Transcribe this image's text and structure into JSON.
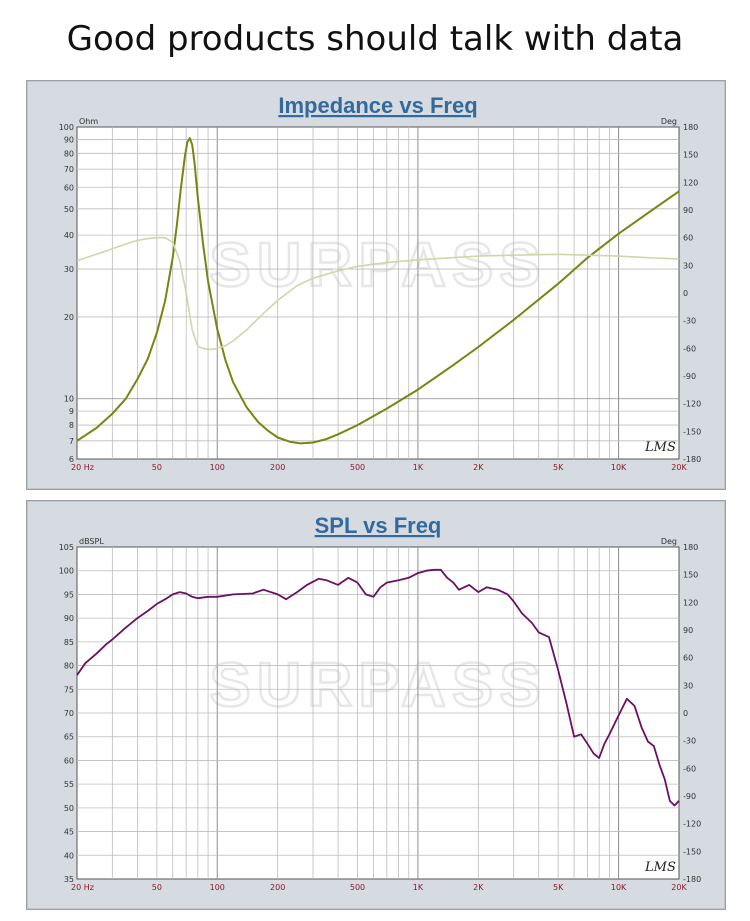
{
  "headline": "Good products should talk with data",
  "watermark": "SURPASS",
  "chart_data": [
    {
      "type": "line",
      "title": "Impedance vs Freq",
      "ylabel_left": "Ohm",
      "ylabel_right": "Deg",
      "xscale": "log",
      "yscale_left": "log",
      "xlim": [
        20,
        20000
      ],
      "ylim_left": [
        6,
        100
      ],
      "ylim_right": [
        -180,
        180
      ],
      "x_ticks": [
        "20 Hz",
        "50",
        "100",
        "200",
        "500",
        "1K",
        "2K",
        "5K",
        "10K",
        "20K"
      ],
      "y_ticks_left": [
        "100",
        "90",
        "80",
        "70",
        "60",
        "50",
        "40",
        "30",
        "20",
        "10",
        "9",
        "8",
        "7",
        "6"
      ],
      "y_ticks_right": [
        "180",
        "150",
        "120",
        "90",
        "60",
        "30",
        "0",
        "-30",
        "-60",
        "-90",
        "-120",
        "-150",
        "-180"
      ],
      "grid": true,
      "software_mark": "LMS",
      "colors": {
        "magnitude": "#7a8410",
        "phase": "#cfd7a8"
      },
      "series": [
        {
          "axis": "left",
          "x": [
            20,
            25,
            30,
            35,
            40,
            45,
            50,
            55,
            60,
            63,
            66,
            69,
            71,
            73,
            75,
            77,
            80,
            85,
            90,
            100,
            110,
            120,
            140,
            160,
            180,
            200,
            230,
            260,
            300,
            350,
            400,
            500,
            700,
            1000,
            1500,
            2000,
            3000,
            5000,
            7000,
            10000,
            15000,
            20000
          ],
          "values": [
            7.0,
            7.8,
            8.8,
            10.0,
            11.8,
            14.0,
            17.5,
            23.0,
            33.0,
            44.0,
            60.0,
            78.0,
            88.0,
            91.0,
            86.0,
            74.0,
            55.0,
            37.0,
            27.0,
            18.0,
            13.8,
            11.5,
            9.3,
            8.2,
            7.6,
            7.2,
            6.95,
            6.85,
            6.9,
            7.1,
            7.4,
            8.0,
            9.2,
            10.8,
            13.3,
            15.5,
            19.5,
            26.5,
            33.0,
            40.5,
            50.0,
            58.0
          ]
        },
        {
          "axis": "right",
          "x": [
            20,
            25,
            30,
            35,
            40,
            45,
            50,
            55,
            60,
            65,
            70,
            75,
            80,
            85,
            90,
            95,
            100,
            110,
            120,
            140,
            170,
            200,
            250,
            300,
            400,
            500,
            700,
            1000,
            2000,
            3000,
            5000,
            7000,
            10000,
            15000,
            20000
          ],
          "values": [
            35,
            42,
            48,
            53,
            57,
            59,
            60,
            60,
            55,
            35,
            0,
            -40,
            -58,
            -60,
            -61,
            -61,
            -60,
            -57,
            -52,
            -40,
            -22,
            -8,
            8,
            16,
            24,
            29,
            33,
            36,
            40,
            41,
            42,
            41,
            40,
            38,
            37
          ]
        }
      ]
    },
    {
      "type": "line",
      "title": "SPL vs Freq",
      "ylabel_left": "dBSPL",
      "ylabel_right": "Deg",
      "xscale": "log",
      "xlim": [
        20,
        20000
      ],
      "ylim_left": [
        35,
        105
      ],
      "ylim_right": [
        -180,
        180
      ],
      "x_ticks": [
        "20 Hz",
        "50",
        "100",
        "200",
        "500",
        "1K",
        "2K",
        "5K",
        "10K",
        "20K"
      ],
      "y_ticks_left": [
        "105",
        "100",
        "95",
        "90",
        "85",
        "80",
        "75",
        "70",
        "65",
        "60",
        "55",
        "50",
        "45",
        "40",
        "35"
      ],
      "y_ticks_right": [
        "180",
        "150",
        "120",
        "90",
        "60",
        "30",
        "0",
        "-30",
        "-60",
        "-90",
        "-120",
        "-150",
        "-180"
      ],
      "grid": true,
      "software_mark": "LMS",
      "colors": {
        "spl": "#6a1066"
      },
      "series": [
        {
          "axis": "left",
          "x": [
            20,
            22,
            25,
            28,
            30,
            35,
            40,
            45,
            50,
            55,
            60,
            65,
            70,
            75,
            80,
            90,
            100,
            120,
            150,
            170,
            200,
            220,
            250,
            280,
            320,
            350,
            400,
            450,
            500,
            550,
            600,
            650,
            700,
            800,
            900,
            1000,
            1100,
            1200,
            1300,
            1400,
            1500,
            1600,
            1800,
            2000,
            2200,
            2500,
            2800,
            3000,
            3300,
            3700,
            4000,
            4500,
            5000,
            5500,
            6000,
            6500,
            7000,
            7500,
            8000,
            8500,
            9000,
            10000,
            11000,
            12000,
            13000,
            14000,
            15000,
            16000,
            17000,
            18000,
            19000,
            20000
          ],
          "values": [
            78.0,
            80.5,
            82.5,
            84.5,
            85.5,
            88.0,
            90.0,
            91.5,
            93.0,
            94.0,
            95.0,
            95.5,
            95.2,
            94.5,
            94.2,
            94.5,
            94.5,
            95.0,
            95.2,
            96.0,
            95.0,
            94.0,
            95.5,
            97.0,
            98.3,
            98.0,
            97.0,
            98.5,
            97.5,
            95.0,
            94.5,
            96.5,
            97.5,
            98.0,
            98.5,
            99.5,
            100.0,
            100.2,
            100.2,
            98.5,
            97.5,
            96.0,
            97.0,
            95.5,
            96.5,
            96.0,
            95.0,
            93.5,
            91.0,
            89.0,
            87.0,
            86.0,
            79.0,
            72.0,
            65.0,
            65.5,
            63.5,
            61.5,
            60.5,
            63.5,
            65.5,
            69.5,
            73.0,
            71.5,
            67.0,
            64.0,
            63.0,
            59.0,
            56.0,
            51.5,
            50.5,
            51.5
          ]
        }
      ]
    }
  ]
}
